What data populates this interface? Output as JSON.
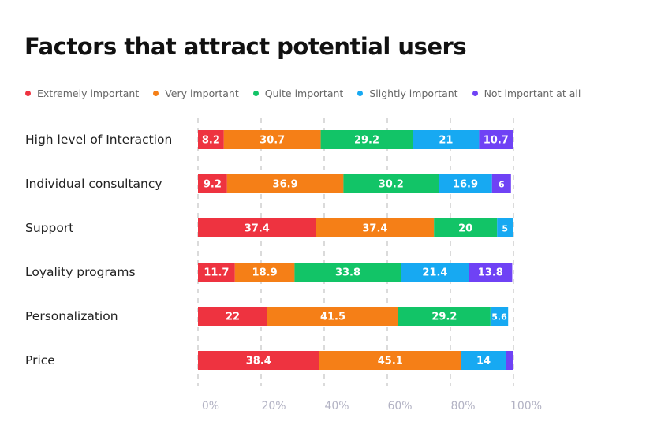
{
  "title": "Factors that attract potential users",
  "chart_data": {
    "type": "bar",
    "orientation": "horizontal",
    "stacked": true,
    "title": "Factors that attract potential users",
    "categories": [
      "High level of Interaction",
      "Individual consultancy",
      "Support",
      "Loyality programs",
      "Personalization",
      "Price"
    ],
    "series": [
      {
        "name": "Extremely important",
        "color": "#ee3340",
        "values": [
          8.2,
          9.2,
          37.4,
          11.7,
          22,
          38.4
        ],
        "labels": [
          "8.2",
          "9.2",
          "37.4",
          "11.7",
          "22",
          "38.4"
        ]
      },
      {
        "name": "Very important",
        "color": "#f57f17",
        "values": [
          30.7,
          36.9,
          37.4,
          18.9,
          41.5,
          45.1
        ],
        "labels": [
          "30.7",
          "36.9",
          "37.4",
          "18.9",
          "41.5",
          "45.1"
        ]
      },
      {
        "name": "Quite important",
        "color": "#12c467",
        "values": [
          29.2,
          30.2,
          20,
          33.8,
          29.2,
          0
        ],
        "labels": [
          "29.2",
          "30.2",
          "20",
          "33.8",
          "29.2",
          ""
        ]
      },
      {
        "name": "Slightly important",
        "color": "#17a9f2",
        "values": [
          21,
          16.9,
          5,
          21.4,
          5.6,
          14
        ],
        "labels": [
          "21",
          "16.9",
          "5",
          "21.4",
          "5.6",
          "14"
        ]
      },
      {
        "name": "Not important at all",
        "color": "#6f42f5",
        "values": [
          10.7,
          6,
          5.2,
          13.8,
          0,
          2.5
        ],
        "labels": [
          "10.7",
          "6",
          "",
          "13.8",
          "",
          ""
        ]
      }
    ],
    "x_ticks": [
      "0%",
      "20%",
      "40%",
      "60%",
      "80%",
      "100%"
    ],
    "xlim": [
      0,
      100
    ],
    "grid": true,
    "legend_position": "top"
  }
}
